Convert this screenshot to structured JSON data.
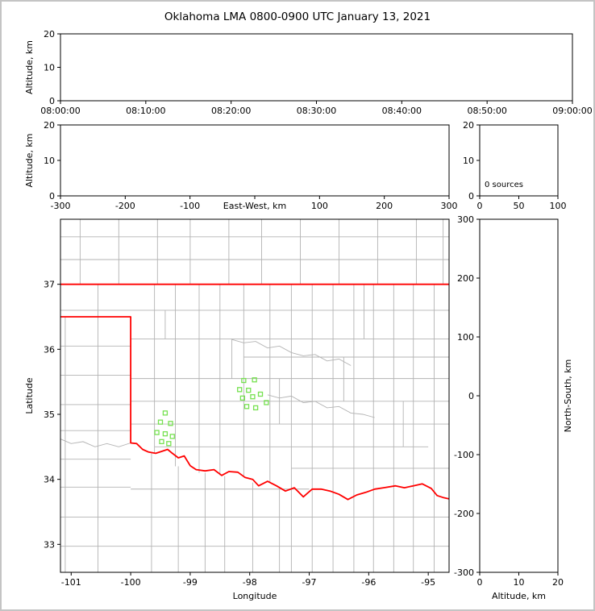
{
  "title": "Oklahoma LMA 0800-0900 UTC January 13, 2021",
  "colors": {
    "background": "#ffffff",
    "frame": "#c4c4c4",
    "axes": "#000000",
    "county": "#b3b3b3",
    "state_border": "#ff0000",
    "station": "#76e150"
  },
  "chart_data": [
    {
      "id": "time_height",
      "type": "scatter",
      "title": "",
      "xlabel": "",
      "ylabel": "Altitude, km",
      "xlim": [
        0,
        3600
      ],
      "ylim": [
        0,
        20
      ],
      "xticks": [
        {
          "v": 0,
          "l": "08:00:00"
        },
        {
          "v": 600,
          "l": "08:10:00"
        },
        {
          "v": 1200,
          "l": "08:20:00"
        },
        {
          "v": 1800,
          "l": "08:30:00"
        },
        {
          "v": 2400,
          "l": "08:40:00"
        },
        {
          "v": 3000,
          "l": "08:50:00"
        },
        {
          "v": 3600,
          "l": "09:00:00"
        }
      ],
      "yticks": [
        {
          "v": 0,
          "l": "0"
        },
        {
          "v": 10,
          "l": "10"
        },
        {
          "v": 20,
          "l": "20"
        }
      ],
      "points": []
    },
    {
      "id": "ew_height",
      "type": "scatter",
      "xlabel": "East-West, km",
      "xlabel_inline": true,
      "ylabel": "Altitude, km",
      "xlim": [
        -300,
        300
      ],
      "ylim": [
        0,
        20
      ],
      "xticks": [
        {
          "v": -300,
          "l": "-300"
        },
        {
          "v": -200,
          "l": "-200"
        },
        {
          "v": -100,
          "l": "-100"
        },
        {
          "v": 0,
          "l": ""
        },
        {
          "v": 100,
          "l": "100"
        },
        {
          "v": 200,
          "l": "200"
        },
        {
          "v": 300,
          "l": "300"
        }
      ],
      "yticks": [
        {
          "v": 0,
          "l": "0"
        },
        {
          "v": 10,
          "l": "10"
        },
        {
          "v": 20,
          "l": "20"
        }
      ],
      "points": []
    },
    {
      "id": "source_hist",
      "type": "scatter",
      "annotation": "0 sources",
      "xlim": [
        0,
        100
      ],
      "ylim": [
        0,
        20
      ],
      "xticks": [
        {
          "v": 0,
          "l": "0"
        },
        {
          "v": 50,
          "l": "50"
        },
        {
          "v": 100,
          "l": "100"
        }
      ],
      "yticks": [
        {
          "v": 0,
          "l": "0"
        },
        {
          "v": 10,
          "l": "10"
        },
        {
          "v": 20,
          "l": "20"
        }
      ],
      "points": []
    },
    {
      "id": "plan_view",
      "type": "scatter",
      "xlabel": "Longitude",
      "ylabel": "Latitude",
      "xlim": [
        -101.18,
        -94.65
      ],
      "ylim": [
        32.57,
        38.0
      ],
      "xticks": [
        {
          "v": -101,
          "l": "-101"
        },
        {
          "v": -100,
          "l": "-100"
        },
        {
          "v": -99,
          "l": "-99"
        },
        {
          "v": -98,
          "l": "-98"
        },
        {
          "v": -97,
          "l": "-97"
        },
        {
          "v": -96,
          "l": "-96"
        },
        {
          "v": -95,
          "l": "-95"
        }
      ],
      "yticks": [
        {
          "v": 33,
          "l": "33"
        },
        {
          "v": 34,
          "l": "34"
        },
        {
          "v": 35,
          "l": "35"
        },
        {
          "v": 36,
          "l": "36"
        },
        {
          "v": 37,
          "l": "37"
        }
      ],
      "map": {
        "state_border": [
          [
            [
              -101.18,
              37.0
            ],
            [
              -94.65,
              37.0
            ]
          ],
          [
            [
              -101.18,
              36.5
            ],
            [
              -100.0,
              36.5
            ],
            [
              -100.0,
              34.56
            ],
            [
              -99.9,
              34.55
            ],
            [
              -99.8,
              34.46
            ],
            [
              -99.7,
              34.42
            ],
            [
              -99.58,
              34.4
            ],
            [
              -99.48,
              34.43
            ],
            [
              -99.38,
              34.46
            ],
            [
              -99.3,
              34.4
            ],
            [
              -99.2,
              34.33
            ],
            [
              -99.1,
              34.36
            ],
            [
              -99.0,
              34.21
            ],
            [
              -98.9,
              34.15
            ],
            [
              -98.75,
              34.13
            ],
            [
              -98.6,
              34.15
            ],
            [
              -98.47,
              34.06
            ],
            [
              -98.35,
              34.12
            ],
            [
              -98.2,
              34.11
            ],
            [
              -98.08,
              34.03
            ],
            [
              -97.95,
              34.0
            ],
            [
              -97.85,
              33.9
            ],
            [
              -97.7,
              33.97
            ],
            [
              -97.55,
              33.9
            ],
            [
              -97.4,
              33.82
            ],
            [
              -97.25,
              33.87
            ],
            [
              -97.1,
              33.73
            ],
            [
              -96.95,
              33.85
            ],
            [
              -96.8,
              33.85
            ],
            [
              -96.65,
              33.82
            ],
            [
              -96.5,
              33.77
            ],
            [
              -96.35,
              33.69
            ],
            [
              -96.2,
              33.76
            ],
            [
              -96.05,
              33.8
            ],
            [
              -95.9,
              33.85
            ],
            [
              -95.75,
              33.87
            ],
            [
              -95.55,
              33.9
            ],
            [
              -95.4,
              33.87
            ],
            [
              -95.25,
              33.9
            ],
            [
              -95.1,
              33.93
            ],
            [
              -94.95,
              33.86
            ],
            [
              -94.85,
              33.75
            ],
            [
              -94.75,
              33.72
            ],
            [
              -94.65,
              33.7
            ]
          ]
        ],
        "county_vertical": [
          [
            -100.85,
            37.0,
            38.0
          ],
          [
            -100.2,
            37.0,
            38.0
          ],
          [
            -99.55,
            37.0,
            38.0
          ],
          [
            -99.0,
            37.0,
            38.0
          ],
          [
            -98.35,
            37.0,
            38.0
          ],
          [
            -97.8,
            37.0,
            38.0
          ],
          [
            -97.15,
            37.0,
            38.0
          ],
          [
            -96.5,
            37.0,
            38.0
          ],
          [
            -95.85,
            37.0,
            38.0
          ],
          [
            -95.2,
            37.0,
            38.0
          ],
          [
            -94.75,
            37.0,
            38.0
          ],
          [
            -100.55,
            36.5,
            37.0
          ],
          [
            -99.6,
            34.4,
            37.0
          ],
          [
            -99.25,
            34.2,
            37.0
          ],
          [
            -98.85,
            34.1,
            37.0
          ],
          [
            -98.5,
            34.06,
            37.0
          ],
          [
            -98.1,
            34.03,
            37.0
          ],
          [
            -97.66,
            33.95,
            37.0
          ],
          [
            -97.3,
            32.57,
            37.0
          ],
          [
            -96.95,
            32.57,
            37.0
          ],
          [
            -96.6,
            32.57,
            37.0
          ],
          [
            -96.25,
            32.57,
            37.0
          ],
          [
            -95.92,
            32.57,
            37.0
          ],
          [
            -95.58,
            32.57,
            37.0
          ],
          [
            -95.25,
            32.57,
            37.0
          ],
          [
            -94.9,
            32.57,
            37.0
          ],
          [
            -99.42,
            36.16,
            36.6
          ],
          [
            -98.3,
            35.55,
            36.16
          ],
          [
            -97.5,
            34.85,
            35.55
          ],
          [
            -96.42,
            35.2,
            35.88
          ],
          [
            -95.42,
            34.5,
            35.2
          ],
          [
            -96.08,
            36.16,
            37.0
          ],
          [
            -100.55,
            32.57,
            36.5
          ],
          [
            -101.1,
            32.57,
            36.5
          ],
          [
            -99.65,
            32.57,
            34.4
          ],
          [
            -99.2,
            32.57,
            34.2
          ],
          [
            -98.75,
            32.57,
            34.1
          ],
          [
            -98.42,
            32.57,
            34.05
          ],
          [
            -97.95,
            32.57,
            33.95
          ],
          [
            -97.5,
            32.57,
            33.85
          ]
        ],
        "county_horizontal": [
          [
            37.73,
            -101.18,
            -94.65
          ],
          [
            37.38,
            -101.18,
            -94.65
          ],
          [
            36.6,
            -101.18,
            -94.65
          ],
          [
            36.16,
            -100.0,
            -94.65
          ],
          [
            35.88,
            -98.1,
            -94.65
          ],
          [
            35.55,
            -100.0,
            -94.65
          ],
          [
            35.2,
            -100.0,
            -94.65
          ],
          [
            34.85,
            -100.0,
            -94.65
          ],
          [
            34.5,
            -99.6,
            -95.0
          ],
          [
            34.17,
            -97.3,
            -94.65
          ],
          [
            36.05,
            -101.18,
            -100.0
          ],
          [
            35.6,
            -101.18,
            -100.0
          ],
          [
            35.15,
            -101.18,
            -100.0
          ],
          [
            34.75,
            -101.18,
            -100.0
          ],
          [
            34.31,
            -101.18,
            -100.0
          ],
          [
            33.88,
            -101.18,
            -100.0
          ],
          [
            33.42,
            -101.18,
            -94.65
          ],
          [
            32.97,
            -101.18,
            -94.65
          ],
          [
            33.85,
            -100.0,
            -97.0
          ]
        ],
        "rivers": [
          [
            [
              -97.7,
              35.3
            ],
            [
              -97.5,
              35.25
            ],
            [
              -97.3,
              35.28
            ],
            [
              -97.1,
              35.18
            ],
            [
              -96.9,
              35.2
            ],
            [
              -96.7,
              35.1
            ],
            [
              -96.5,
              35.12
            ],
            [
              -96.3,
              35.02
            ],
            [
              -96.1,
              35.0
            ],
            [
              -95.9,
              34.95
            ]
          ],
          [
            [
              -98.3,
              36.15
            ],
            [
              -98.1,
              36.1
            ],
            [
              -97.9,
              36.12
            ],
            [
              -97.7,
              36.02
            ],
            [
              -97.5,
              36.05
            ],
            [
              -97.3,
              35.95
            ],
            [
              -97.1,
              35.9
            ],
            [
              -96.9,
              35.92
            ],
            [
              -96.7,
              35.82
            ],
            [
              -96.5,
              35.85
            ],
            [
              -96.3,
              35.75
            ]
          ],
          [
            [
              -101.18,
              34.62
            ],
            [
              -101.0,
              34.55
            ],
            [
              -100.8,
              34.58
            ],
            [
              -100.6,
              34.5
            ],
            [
              -100.4,
              34.55
            ],
            [
              -100.2,
              34.5
            ],
            [
              -100.0,
              34.56
            ]
          ]
        ],
        "stations": [
          [
            -99.42,
            35.02
          ],
          [
            -99.5,
            34.88
          ],
          [
            -99.33,
            34.86
          ],
          [
            -99.56,
            34.72
          ],
          [
            -99.42,
            34.7
          ],
          [
            -99.3,
            34.66
          ],
          [
            -99.48,
            34.58
          ],
          [
            -99.36,
            34.55
          ],
          [
            -98.1,
            35.52
          ],
          [
            -97.92,
            35.53
          ],
          [
            -98.17,
            35.38
          ],
          [
            -98.02,
            35.37
          ],
          [
            -98.12,
            35.25
          ],
          [
            -97.95,
            35.27
          ],
          [
            -97.82,
            35.31
          ],
          [
            -98.05,
            35.12
          ],
          [
            -97.9,
            35.1
          ],
          [
            -97.72,
            35.18
          ]
        ]
      }
    },
    {
      "id": "ns_alt",
      "type": "scatter",
      "xlabel": "Altitude, km",
      "ylabel": "North-South, km",
      "ylabel_side": "right",
      "xlim": [
        0,
        20
      ],
      "ylim": [
        -300,
        300
      ],
      "xticks": [
        {
          "v": 0,
          "l": "0"
        },
        {
          "v": 10,
          "l": "10"
        },
        {
          "v": 20,
          "l": "20"
        }
      ],
      "yticks": [
        {
          "v": 300,
          "l": "300"
        },
        {
          "v": 200,
          "l": "200"
        },
        {
          "v": 100,
          "l": "100"
        },
        {
          "v": 0,
          "l": "0"
        },
        {
          "v": -100,
          "l": "-100"
        },
        {
          "v": -200,
          "l": "-200"
        },
        {
          "v": -300,
          "l": "-300"
        }
      ],
      "points": []
    }
  ]
}
